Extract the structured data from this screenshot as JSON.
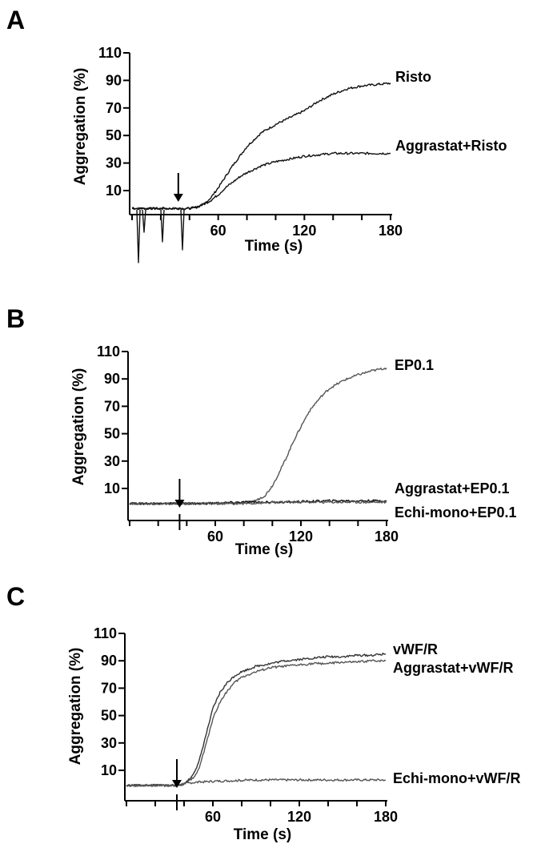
{
  "colors": {
    "trace_dark": "#111111",
    "trace_grey": "#555555",
    "arrow": "#000000"
  },
  "chart_data": [
    {
      "panel": "A",
      "type": "line",
      "title": "",
      "xlabel": "Time (s)",
      "ylabel": "Aggregation (%)",
      "xticks": [
        60,
        120,
        180
      ],
      "yticks": [
        10,
        30,
        50,
        70,
        90,
        110
      ],
      "xlim": [
        0,
        180
      ],
      "ylim": [
        -5,
        110
      ],
      "arrow_at_x": 35,
      "series": [
        {
          "name": "Risto",
          "color": "#111111",
          "x": [
            0,
            10,
            20,
            30,
            35,
            40,
            45,
            50,
            55,
            60,
            65,
            70,
            75,
            80,
            90,
            100,
            110,
            120,
            130,
            140,
            150,
            160,
            170,
            180
          ],
          "y": [
            -3,
            -3,
            -3,
            -3,
            -3,
            -3,
            -2,
            0,
            5,
            12,
            20,
            28,
            35,
            42,
            52,
            58,
            63,
            68,
            75,
            80,
            84,
            86,
            87,
            88
          ]
        },
        {
          "name": "Aggrastat+Risto",
          "color": "#111111",
          "x": [
            0,
            10,
            20,
            30,
            35,
            40,
            45,
            50,
            55,
            60,
            65,
            70,
            75,
            80,
            90,
            100,
            110,
            120,
            130,
            140,
            150,
            160,
            170,
            180
          ],
          "y": [
            -3,
            -3,
            -3,
            -3,
            -3,
            -3,
            -2,
            0,
            3,
            7,
            12,
            16,
            20,
            23,
            28,
            31,
            33,
            35,
            36,
            37,
            37,
            37,
            37,
            37
          ]
        }
      ]
    },
    {
      "panel": "B",
      "type": "line",
      "title": "",
      "xlabel": "Time (s)",
      "ylabel": "Aggregation (%)",
      "xticks": [
        60,
        120,
        180
      ],
      "yticks": [
        10,
        30,
        50,
        70,
        90,
        110
      ],
      "xlim": [
        0,
        180
      ],
      "ylim": [
        -5,
        110
      ],
      "arrow_at_x": 35,
      "series": [
        {
          "name": "EP0.1",
          "color": "#555555",
          "x": [
            0,
            20,
            35,
            50,
            70,
            85,
            90,
            95,
            100,
            105,
            110,
            115,
            120,
            125,
            130,
            135,
            140,
            150,
            160,
            170,
            180
          ],
          "y": [
            -1,
            -1,
            -1,
            -1,
            -1,
            0,
            2,
            5,
            12,
            22,
            33,
            45,
            55,
            65,
            72,
            78,
            83,
            89,
            93,
            96,
            98
          ]
        },
        {
          "name": "Aggrastat+EP0.1",
          "color": "#111111",
          "x": [
            0,
            20,
            35,
            50,
            80,
            110,
            140,
            180
          ],
          "y": [
            -1,
            -1,
            -1,
            -1,
            0,
            0,
            1,
            1
          ]
        },
        {
          "name": "Echi-mono+EP0.1",
          "color": "#555555",
          "x": [
            0,
            20,
            35,
            50,
            80,
            110,
            140,
            180
          ],
          "y": [
            -1,
            -1,
            -1,
            -1,
            -1,
            0,
            0,
            0
          ]
        }
      ]
    },
    {
      "panel": "C",
      "type": "line",
      "title": "",
      "xlabel": "Time (s)",
      "ylabel": "Aggregation (%)",
      "xticks": [
        60,
        120,
        180
      ],
      "yticks": [
        10,
        30,
        50,
        70,
        90,
        110
      ],
      "xlim": [
        0,
        180
      ],
      "ylim": [
        -5,
        110
      ],
      "arrow_at_x": 35,
      "series": [
        {
          "name": "vWF/R",
          "color": "#333333",
          "x": [
            0,
            20,
            35,
            40,
            45,
            50,
            55,
            60,
            65,
            70,
            75,
            80,
            90,
            100,
            110,
            120,
            130,
            140,
            150,
            160,
            170,
            180
          ],
          "y": [
            -1,
            -1,
            -1,
            0,
            5,
            15,
            35,
            55,
            67,
            74,
            79,
            82,
            86,
            88,
            90,
            91,
            92,
            93,
            93,
            94,
            94,
            95
          ]
        },
        {
          "name": "Aggrastat+vWF/R",
          "color": "#555555",
          "x": [
            0,
            20,
            35,
            40,
            45,
            50,
            55,
            60,
            65,
            70,
            75,
            80,
            90,
            100,
            110,
            120,
            130,
            140,
            150,
            160,
            170,
            180
          ],
          "y": [
            -1,
            -1,
            -1,
            0,
            3,
            10,
            28,
            48,
            60,
            68,
            74,
            78,
            82,
            85,
            86,
            87,
            88,
            88,
            89,
            89,
            90,
            90
          ]
        },
        {
          "name": "Echi-mono+vWF/R",
          "color": "#555555",
          "x": [
            0,
            20,
            35,
            40,
            45,
            60,
            90,
            120,
            150,
            180
          ],
          "y": [
            -1,
            -1,
            -1,
            0,
            1,
            2,
            3,
            3,
            3,
            3
          ]
        }
      ]
    }
  ]
}
